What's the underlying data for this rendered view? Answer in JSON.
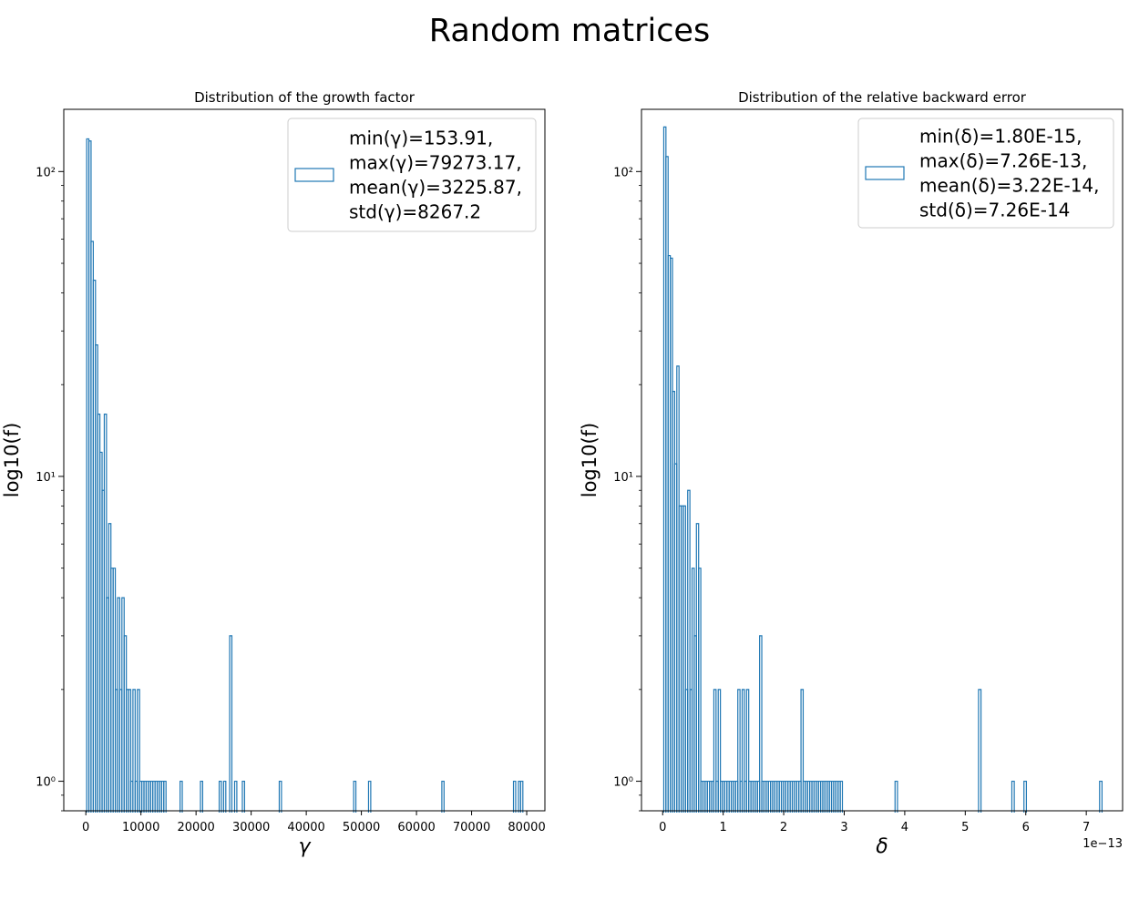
{
  "figure": {
    "title": "Random matrices"
  },
  "colors": {
    "series": "#1f77b4",
    "axis": "#000000",
    "legend_border": "#cccccc"
  },
  "chart_data": [
    {
      "type": "bar",
      "style": "step-histogram",
      "title": "Distribution of the growth factor",
      "xlabel": "γ",
      "ylabel": "log10(f)",
      "yscale": "log",
      "xlim": [
        -4000,
        83300
      ],
      "ylim": [
        0.8,
        160
      ],
      "xticks": [
        0,
        10000,
        20000,
        30000,
        40000,
        50000,
        60000,
        70000,
        80000
      ],
      "xtick_labels": [
        "0",
        "10000",
        "20000",
        "30000",
        "40000",
        "50000",
        "60000",
        "70000",
        "80000"
      ],
      "yticks": [
        1,
        10,
        100
      ],
      "ytick_labels": [
        "10⁰",
        "10¹",
        "10²"
      ],
      "legend_lines": [
        "min(γ)=153.91,",
        "max(γ)=79273.17,",
        "mean(γ)=3225.87,",
        "std(γ)=8267.2"
      ],
      "legend_position": "top-right",
      "bins": [
        [
          154,
          550,
          128
        ],
        [
          550,
          950,
          126
        ],
        [
          950,
          1350,
          59
        ],
        [
          1350,
          1750,
          44
        ],
        [
          1750,
          2150,
          27
        ],
        [
          2150,
          2550,
          16
        ],
        [
          2550,
          2950,
          12
        ],
        [
          2950,
          3350,
          9
        ],
        [
          3350,
          3750,
          16
        ],
        [
          3750,
          4150,
          4
        ],
        [
          4150,
          4550,
          7
        ],
        [
          4550,
          4950,
          5
        ],
        [
          4950,
          5350,
          5
        ],
        [
          5350,
          5750,
          2
        ],
        [
          5750,
          6150,
          4
        ],
        [
          6150,
          6550,
          2
        ],
        [
          6550,
          6950,
          4
        ],
        [
          6950,
          7350,
          3
        ],
        [
          7350,
          7750,
          2
        ],
        [
          7750,
          8150,
          2
        ],
        [
          8150,
          8550,
          1
        ],
        [
          8550,
          8950,
          2
        ],
        [
          8950,
          9350,
          1
        ],
        [
          9350,
          9750,
          2
        ],
        [
          9750,
          10150,
          1
        ],
        [
          10150,
          10550,
          1
        ],
        [
          10550,
          10950,
          1
        ],
        [
          10950,
          11350,
          1
        ],
        [
          11350,
          11750,
          1
        ],
        [
          11750,
          12150,
          1
        ],
        [
          12150,
          12550,
          1
        ],
        [
          12550,
          12950,
          1
        ],
        [
          12950,
          13350,
          1
        ],
        [
          13350,
          13750,
          1
        ],
        [
          13750,
          14150,
          1
        ],
        [
          14150,
          14550,
          1
        ],
        [
          17100,
          17500,
          1
        ],
        [
          20800,
          21200,
          1
        ],
        [
          24200,
          24600,
          1
        ],
        [
          25000,
          25400,
          1
        ],
        [
          26100,
          26500,
          3
        ],
        [
          27000,
          27400,
          1
        ],
        [
          28400,
          28800,
          1
        ],
        [
          35100,
          35500,
          1
        ],
        [
          48600,
          49000,
          1
        ],
        [
          51300,
          51700,
          1
        ],
        [
          64600,
          65000,
          1
        ],
        [
          77600,
          78000,
          1
        ],
        [
          78500,
          78900,
          1
        ],
        [
          78900,
          79300,
          1
        ]
      ]
    },
    {
      "type": "bar",
      "style": "step-histogram",
      "title": "Distribution of the relative backward error",
      "xlabel": "δ",
      "ylabel": "log10(f)",
      "yscale": "log",
      "x_offset_label": "1e−13",
      "xlim": [
        -0.35,
        7.6
      ],
      "ylim": [
        0.8,
        160
      ],
      "xticks": [
        0,
        1,
        2,
        3,
        4,
        5,
        6,
        7
      ],
      "xtick_labels": [
        "0",
        "1",
        "2",
        "3",
        "4",
        "5",
        "6",
        "7"
      ],
      "yticks": [
        1,
        10,
        100
      ],
      "ytick_labels": [
        "10⁰",
        "10¹",
        "10²"
      ],
      "legend_lines": [
        "min(δ)=1.80E-15,",
        "max(δ)=7.26E-13,",
        "mean(δ)=3.22E-14,",
        "std(δ)=7.26E-14"
      ],
      "legend_position": "top-right",
      "bins": [
        [
          0.018,
          0.054,
          140
        ],
        [
          0.054,
          0.09,
          112
        ],
        [
          0.09,
          0.126,
          53
        ],
        [
          0.126,
          0.162,
          52
        ],
        [
          0.162,
          0.198,
          19
        ],
        [
          0.198,
          0.234,
          11
        ],
        [
          0.234,
          0.27,
          23
        ],
        [
          0.27,
          0.306,
          8
        ],
        [
          0.306,
          0.342,
          8
        ],
        [
          0.342,
          0.378,
          8
        ],
        [
          0.378,
          0.414,
          2
        ],
        [
          0.414,
          0.45,
          9
        ],
        [
          0.45,
          0.486,
          2
        ],
        [
          0.486,
          0.522,
          5
        ],
        [
          0.522,
          0.558,
          3
        ],
        [
          0.558,
          0.594,
          7
        ],
        [
          0.594,
          0.63,
          5
        ],
        [
          0.63,
          0.666,
          1
        ],
        [
          0.666,
          0.702,
          1
        ],
        [
          0.702,
          0.738,
          1
        ],
        [
          0.738,
          0.774,
          1
        ],
        [
          0.774,
          0.81,
          1
        ],
        [
          0.81,
          0.846,
          1
        ],
        [
          0.846,
          0.882,
          2
        ],
        [
          0.882,
          0.918,
          1
        ],
        [
          0.918,
          0.954,
          2
        ],
        [
          0.954,
          0.99,
          1
        ],
        [
          0.99,
          1.026,
          1
        ],
        [
          1.026,
          1.062,
          1
        ],
        [
          1.062,
          1.098,
          1
        ],
        [
          1.098,
          1.134,
          1
        ],
        [
          1.134,
          1.17,
          1
        ],
        [
          1.17,
          1.206,
          1
        ],
        [
          1.206,
          1.242,
          1
        ],
        [
          1.242,
          1.278,
          2
        ],
        [
          1.278,
          1.314,
          1
        ],
        [
          1.314,
          1.35,
          2
        ],
        [
          1.35,
          1.386,
          1
        ],
        [
          1.386,
          1.422,
          2
        ],
        [
          1.422,
          1.458,
          1
        ],
        [
          1.458,
          1.494,
          1
        ],
        [
          1.494,
          1.53,
          1
        ],
        [
          1.53,
          1.566,
          1
        ],
        [
          1.566,
          1.602,
          1
        ],
        [
          1.602,
          1.638,
          3
        ],
        [
          1.638,
          1.674,
          1
        ],
        [
          1.674,
          1.71,
          1
        ],
        [
          1.71,
          1.746,
          1
        ],
        [
          1.746,
          1.782,
          1
        ],
        [
          1.782,
          1.818,
          1
        ],
        [
          1.818,
          1.854,
          1
        ],
        [
          1.854,
          1.89,
          1
        ],
        [
          1.89,
          1.926,
          1
        ],
        [
          1.926,
          1.962,
          1
        ],
        [
          1.962,
          1.998,
          1
        ],
        [
          1.998,
          2.034,
          1
        ],
        [
          2.034,
          2.07,
          1
        ],
        [
          2.07,
          2.106,
          1
        ],
        [
          2.106,
          2.142,
          1
        ],
        [
          2.142,
          2.178,
          1
        ],
        [
          2.178,
          2.214,
          1
        ],
        [
          2.214,
          2.25,
          1
        ],
        [
          2.25,
          2.286,
          1
        ],
        [
          2.286,
          2.322,
          2
        ],
        [
          2.322,
          2.358,
          1
        ],
        [
          2.358,
          2.394,
          1
        ],
        [
          2.394,
          2.43,
          1
        ],
        [
          2.43,
          2.466,
          1
        ],
        [
          2.466,
          2.502,
          1
        ],
        [
          2.502,
          2.538,
          1
        ],
        [
          2.538,
          2.574,
          1
        ],
        [
          2.574,
          2.61,
          1
        ],
        [
          2.61,
          2.646,
          1
        ],
        [
          2.646,
          2.682,
          1
        ],
        [
          2.682,
          2.718,
          1
        ],
        [
          2.718,
          2.754,
          1
        ],
        [
          2.754,
          2.79,
          1
        ],
        [
          2.79,
          2.826,
          1
        ],
        [
          2.826,
          2.862,
          1
        ],
        [
          2.862,
          2.898,
          1
        ],
        [
          2.898,
          2.934,
          1
        ],
        [
          2.934,
          2.97,
          1
        ],
        [
          3.84,
          3.88,
          1
        ],
        [
          5.22,
          5.26,
          2
        ],
        [
          5.77,
          5.81,
          1
        ],
        [
          5.97,
          6.01,
          1
        ],
        [
          7.22,
          7.26,
          1
        ]
      ]
    }
  ]
}
